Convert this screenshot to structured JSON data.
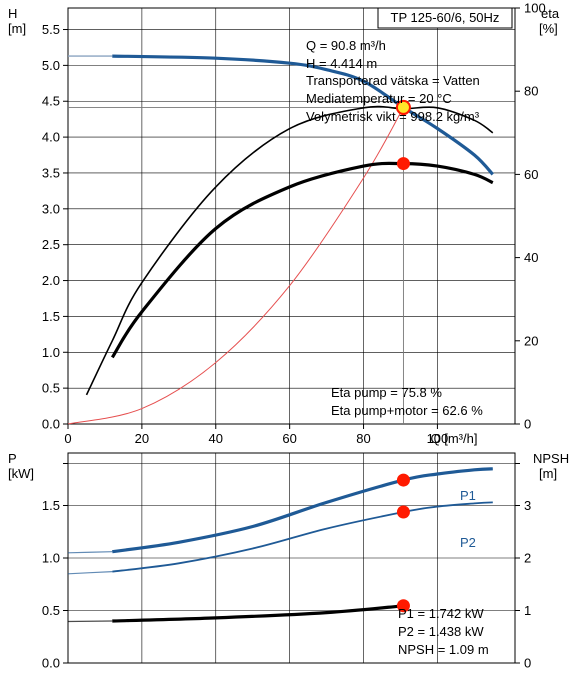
{
  "colors": {
    "head_curve": "#1f5a96",
    "power_curve": "#1f5a96",
    "eta_curve": "#000000",
    "system_curve": "#e65050",
    "duty_point": "#ff1a00",
    "duty_point_center": "#ffe629",
    "grid": "#000000"
  },
  "top_panel": {
    "title": "TP 125-60/6, 50Hz",
    "left_axis_label": "H",
    "left_axis_unit": "[m]",
    "right_axis_label": "eta",
    "right_axis_unit": "[%]",
    "x_axis_label": "Q [m³/h]",
    "info_lines": [
      "Q = 90.8 m³/h",
      "H = 4.414 m",
      "Transporterad vätska = Vatten",
      "Mediatemperatur = 20 °C",
      "Volymetrisk vikt = 998.2 kg/m³"
    ],
    "eta_lines": [
      "Eta pump = 75.8 %",
      "Eta pump+motor = 62.6 %"
    ],
    "x_ticks": [
      "0",
      "20",
      "40",
      "60",
      "80",
      "100"
    ],
    "left_ticks": [
      "0.0",
      "0.5",
      "1.0",
      "1.5",
      "2.0",
      "2.5",
      "3.0",
      "3.5",
      "4.0",
      "4.5",
      "5.0",
      "5.5"
    ],
    "right_ticks": [
      "0",
      "20",
      "40",
      "60",
      "80",
      "100"
    ]
  },
  "bottom_panel": {
    "left_axis_label": "P",
    "left_axis_unit": "[kW]",
    "right_axis_label": "NPSH",
    "right_axis_unit": "[m]",
    "left_ticks": [
      "0.0",
      "0.5",
      "1.0",
      "1.5"
    ],
    "right_ticks": [
      "0",
      "1",
      "2",
      "3"
    ],
    "series_labels": {
      "p1": "P1",
      "p2": "P2"
    },
    "info_lines": [
      "P1 = 1.742 kW",
      "P2 = 1.438 kW",
      "NPSH = 1.09 m"
    ]
  },
  "chart_data": [
    {
      "type": "line",
      "title": "TP 125-60/6, 50Hz",
      "xlabel": "Q [m³/h]",
      "ylabel": "H [m]",
      "y2label": "eta [%]",
      "xlim": [
        0,
        121
      ],
      "ylim": [
        0,
        5.8
      ],
      "y2lim": [
        0,
        100
      ],
      "grid": true,
      "duty_point": {
        "x": 90.8,
        "H": 4.414,
        "eta_pump": 75.8,
        "eta_pump_motor": 62.6
      },
      "series": [
        {
          "name": "H",
          "axis": "left",
          "x": [
            0,
            12,
            40,
            60,
            70,
            80,
            90.8,
            100,
            110,
            115
          ],
          "values": [
            5.13,
            5.13,
            5.1,
            5.03,
            4.94,
            4.78,
            4.414,
            4.12,
            3.75,
            3.48
          ]
        },
        {
          "axis": "left",
          "x": [
            0,
            20,
            40,
            60,
            80,
            90.8
          ],
          "values": [
            0,
            0.215,
            0.857,
            1.93,
            3.43,
            4.414
          ]
        },
        {
          "name": "Eta pump",
          "axis": "right",
          "x": [
            5,
            12,
            20,
            40,
            60,
            80,
            90.8,
            100,
            110,
            115
          ],
          "values": [
            7,
            20,
            34,
            57,
            71,
            76,
            75.8,
            76,
            73,
            70
          ]
        },
        {
          "name": "Eta pump+motor",
          "axis": "right",
          "x": [
            12,
            20,
            40,
            60,
            80,
            90.8,
            100,
            110,
            115
          ],
          "values": [
            16,
            27,
            47,
            57,
            62,
            62.6,
            62,
            60,
            58
          ]
        }
      ]
    },
    {
      "type": "line",
      "ylabel": "P [kW]",
      "y2label": "NPSH [m]",
      "xlim": [
        0,
        121
      ],
      "ylim": [
        0,
        2.0
      ],
      "y2lim": [
        0,
        4.0
      ],
      "grid": true,
      "duty_point": {
        "x": 90.8,
        "P1": 1.742,
        "P2": 1.438,
        "NPSH": 1.09
      },
      "series": [
        {
          "name": "P1",
          "axis": "left",
          "x": [
            0,
            12,
            30,
            50,
            70,
            90.8,
            100,
            110,
            115
          ],
          "values": [
            1.05,
            1.06,
            1.15,
            1.3,
            1.53,
            1.742,
            1.8,
            1.84,
            1.85
          ]
        },
        {
          "name": "P2",
          "axis": "left",
          "x": [
            0,
            12,
            30,
            50,
            70,
            90.8,
            100,
            110,
            115
          ],
          "values": [
            0.85,
            0.87,
            0.95,
            1.09,
            1.28,
            1.438,
            1.49,
            1.52,
            1.53
          ]
        },
        {
          "name": "NPSH",
          "axis": "right",
          "x": [
            0,
            12,
            40,
            70,
            90.8
          ],
          "values": [
            0.79,
            0.8,
            0.86,
            0.96,
            1.09
          ]
        }
      ]
    }
  ]
}
